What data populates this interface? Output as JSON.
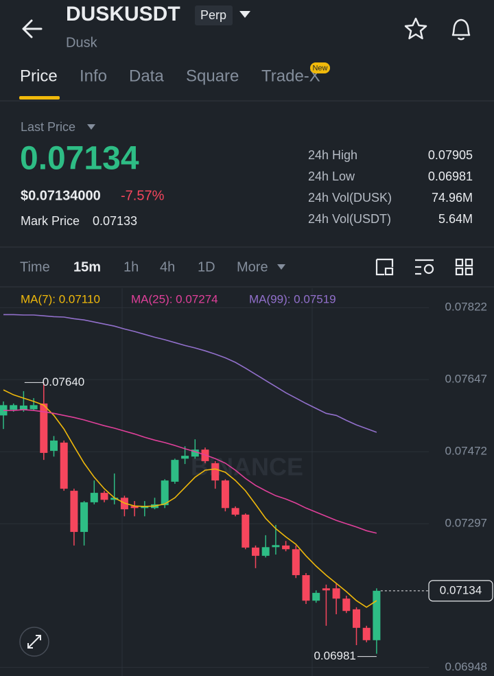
{
  "header": {
    "symbol": "DUSKUSDT",
    "badge": "Perp",
    "name": "Dusk"
  },
  "tabs": [
    "Price",
    "Info",
    "Data",
    "Square",
    "Trade-X"
  ],
  "new_badge": "New",
  "price": {
    "caption": "Last Price",
    "last": "0.07134",
    "usd": "$0.07134000",
    "change": "-7.57%",
    "mark_caption": "Mark Price",
    "mark": "0.07133"
  },
  "stats": [
    {
      "label": "24h High",
      "value": "0.07905"
    },
    {
      "label": "24h Low",
      "value": "0.06981"
    },
    {
      "label": "24h Vol(DUSK)",
      "value": "74.96M"
    },
    {
      "label": "24h Vol(USDT)",
      "value": "5.64M"
    }
  ],
  "timeframes": [
    "Time",
    "15m",
    "1h",
    "4h",
    "1D",
    "More"
  ],
  "chart_data": {
    "type": "candlestick",
    "watermark": "BINANCE",
    "up_color": "#2ebd85",
    "down_color": "#f6465d",
    "open": [
      0.0756,
      0.07574,
      0.07574,
      0.07575,
      0.07589,
      0.07474,
      0.07494,
      0.07377,
      0.07277,
      0.07349,
      0.07372,
      0.07355,
      0.0736,
      0.0734,
      0.07335,
      0.07335,
      0.07342,
      0.07399,
      0.07455,
      0.0746,
      0.07477,
      0.07444,
      0.07402,
      0.07335,
      0.07319,
      0.07239,
      0.07219,
      0.0724,
      0.07244,
      0.07235,
      0.07172,
      0.0711,
      0.0714,
      0.0714,
      0.07115,
      0.07089,
      0.07044,
      0.07014
    ],
    "high": [
      0.07594,
      0.07589,
      0.07619,
      0.07602,
      0.0764,
      0.0751,
      0.07499,
      0.07382,
      0.07352,
      0.07402,
      0.07377,
      0.07419,
      0.07365,
      0.07352,
      0.07352,
      0.0736,
      0.07405,
      0.07455,
      0.07485,
      0.07502,
      0.07482,
      0.07449,
      0.07405,
      0.07339,
      0.07322,
      0.07244,
      0.07269,
      0.07294,
      0.07255,
      0.07244,
      0.07177,
      0.07135,
      0.07149,
      0.07152,
      0.07122,
      0.07094,
      0.07049,
      0.0714
    ],
    "low": [
      0.07527,
      0.07569,
      0.07569,
      0.07572,
      0.07452,
      0.0746,
      0.07377,
      0.07244,
      0.07244,
      0.07344,
      0.07349,
      0.07344,
      0.07315,
      0.07315,
      0.07315,
      0.07332,
      0.07335,
      0.07394,
      0.07442,
      0.07455,
      0.07444,
      0.07382,
      0.07327,
      0.07315,
      0.07235,
      0.07189,
      0.07215,
      0.07222,
      0.0723,
      0.07165,
      0.07102,
      0.07105,
      0.07049,
      0.07077,
      0.0708,
      0.07002,
      0.07009,
      0.06981
    ],
    "close": [
      0.07585,
      0.07585,
      0.07584,
      0.07585,
      0.07469,
      0.07499,
      0.07382,
      0.07277,
      0.07349,
      0.07372,
      0.07355,
      0.0736,
      0.07332,
      0.07335,
      0.0734,
      0.07344,
      0.07402,
      0.07452,
      0.07462,
      0.07477,
      0.07449,
      0.07402,
      0.07335,
      0.07319,
      0.07239,
      0.07219,
      0.0724,
      0.07245,
      0.07235,
      0.07172,
      0.0711,
      0.07129,
      0.07135,
      0.07115,
      0.07085,
      0.07044,
      0.07014,
      0.07134
    ],
    "series": [
      {
        "name": "MA(7): 0.07110",
        "color": "#f0b90b",
        "values": [
          0.07622,
          0.0761,
          0.07602,
          0.07594,
          0.07585,
          0.0756,
          0.07527,
          0.07485,
          0.07444,
          0.0741,
          0.07382,
          0.0736,
          0.07347,
          0.0734,
          0.07339,
          0.0734,
          0.07345,
          0.0736,
          0.07385,
          0.0741,
          0.07427,
          0.0743,
          0.07422,
          0.07402,
          0.07377,
          0.07344,
          0.0731,
          0.07285,
          0.07265,
          0.07247,
          0.07219,
          0.07194,
          0.07172,
          0.07152,
          0.07132,
          0.0711,
          0.07094,
          0.0711
        ]
      },
      {
        "name": "MA(25): 0.07274",
        "color": "#e0409a",
        "values": [
          0.07572,
          0.07572,
          0.07574,
          0.07572,
          0.07569,
          0.07565,
          0.0756,
          0.07555,
          0.07549,
          0.07542,
          0.07535,
          0.07529,
          0.07522,
          0.07515,
          0.07507,
          0.075,
          0.07494,
          0.07487,
          0.07479,
          0.07472,
          0.07464,
          0.07455,
          0.07444,
          0.07427,
          0.07407,
          0.0739,
          0.07377,
          0.07365,
          0.07357,
          0.07347,
          0.07335,
          0.07325,
          0.07315,
          0.07305,
          0.07297,
          0.07289,
          0.0728,
          0.07274
        ]
      },
      {
        "name": "MA(99): 0.07519",
        "color": "#9270cc",
        "values": [
          0.07805,
          0.07805,
          0.07804,
          0.07804,
          0.07802,
          0.078,
          0.07799,
          0.07795,
          0.07792,
          0.07787,
          0.07782,
          0.07777,
          0.0777,
          0.07764,
          0.07757,
          0.0775,
          0.07744,
          0.07737,
          0.0773,
          0.07724,
          0.07717,
          0.07709,
          0.077,
          0.07689,
          0.07675,
          0.0766,
          0.07645,
          0.0763,
          0.07615,
          0.07602,
          0.07589,
          0.07577,
          0.07565,
          0.0756,
          0.07548,
          0.07537,
          0.07528,
          0.07519
        ]
      }
    ],
    "high_label": "0.07640",
    "low_label": "0.06981",
    "last_label": "0.07134",
    "ylim": [
      0.06927,
      0.07869
    ],
    "yticks": [
      0.07822,
      0.07647,
      0.07472,
      0.07297,
      0.06948
    ],
    "grid": true
  }
}
